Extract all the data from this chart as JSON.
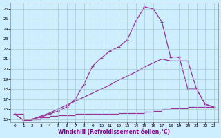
{
  "xlabel": "Windchill (Refroidissement éolien,°C)",
  "bg_color": "#cceeff",
  "grid_color": "#aacccc",
  "line_color": "#993399",
  "xlim": [
    -0.5,
    23.5
  ],
  "ylim": [
    14.7,
    26.6
  ],
  "xticks": [
    0,
    1,
    2,
    3,
    4,
    5,
    6,
    7,
    8,
    9,
    10,
    11,
    12,
    13,
    14,
    15,
    16,
    17,
    18,
    19,
    20,
    21,
    22,
    23
  ],
  "yticks": [
    15,
    16,
    17,
    18,
    19,
    20,
    21,
    22,
    23,
    24,
    25,
    26
  ],
  "line1_x": [
    0,
    1,
    2,
    3,
    4,
    5,
    6,
    7,
    8,
    9,
    10,
    11,
    12,
    13,
    14,
    15,
    16,
    17,
    18,
    19,
    20,
    21,
    22,
    23
  ],
  "line1_y": [
    15.5,
    14.9,
    15.0,
    15.2,
    15.5,
    15.8,
    16.2,
    17.0,
    18.5,
    20.3,
    21.1,
    21.8,
    22.2,
    22.9,
    24.8,
    26.2,
    26.0,
    24.7,
    21.2,
    21.2,
    18.0,
    18.0,
    16.5,
    16.2
  ],
  "line2_x": [
    0,
    1,
    2,
    3,
    4,
    5,
    6,
    7,
    8,
    9,
    10,
    11,
    12,
    13,
    14,
    15,
    16,
    17,
    18,
    19,
    20,
    21,
    22,
    23
  ],
  "line2_y": [
    15.5,
    14.9,
    15.0,
    15.3,
    15.6,
    16.0,
    16.4,
    16.8,
    17.2,
    17.6,
    18.0,
    18.4,
    18.9,
    19.3,
    19.7,
    20.2,
    20.6,
    21.0,
    20.8,
    20.8,
    20.8,
    18.0,
    16.5,
    16.2
  ],
  "line3_x": [
    0,
    1,
    2,
    3,
    4,
    5,
    6,
    7,
    8,
    9,
    10,
    11,
    12,
    13,
    14,
    15,
    16,
    17,
    18,
    19,
    20,
    21,
    22,
    23
  ],
  "line3_y": [
    15.5,
    14.9,
    15.0,
    15.2,
    15.3,
    15.4,
    15.4,
    15.5,
    15.5,
    15.5,
    15.5,
    15.5,
    15.6,
    15.6,
    15.6,
    15.7,
    15.8,
    16.0,
    16.1,
    16.1,
    16.2,
    16.2,
    16.2,
    16.2
  ]
}
